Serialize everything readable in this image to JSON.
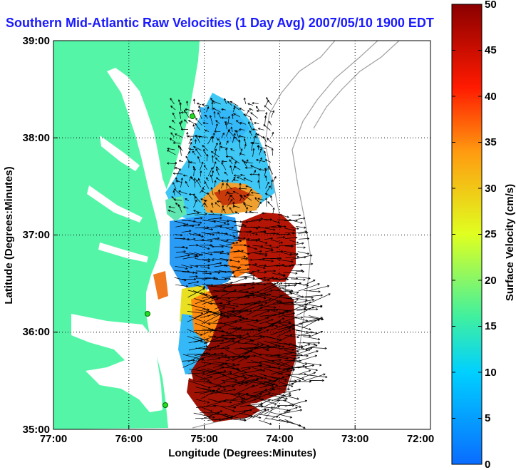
{
  "title": "Southern Mid-Atlantic Raw Velocities (1 Day Avg) 2007/05/10 1900 EDT",
  "map": {
    "x_label": "Longitude (Degrees:Minutes)",
    "y_label": "Latitude (Degrees:Minutes)",
    "x_ticks": [
      "77:00",
      "76:00",
      "75:00",
      "74:00",
      "73:00",
      "72:00"
    ],
    "y_ticks": [
      "39:00",
      "38:00",
      "37:00",
      "36:00",
      "35:00"
    ],
    "grid": "dotted",
    "land_color": "#55f5a8",
    "bathymetry_color": "#a0a0a0",
    "station_marker_color": "#22dd22"
  },
  "colorbar": {
    "label": "Surface Velocity (cm/s)",
    "ticks": [
      "50",
      "45",
      "40",
      "35",
      "30",
      "25",
      "20",
      "15",
      "10",
      "5",
      "0"
    ],
    "min": 0,
    "max": 50,
    "colors": [
      "#0a6cff",
      "#00d0ff",
      "#40f0a0",
      "#e0ff20",
      "#ff9a10",
      "#ff1a00",
      "#8a0000"
    ]
  }
}
